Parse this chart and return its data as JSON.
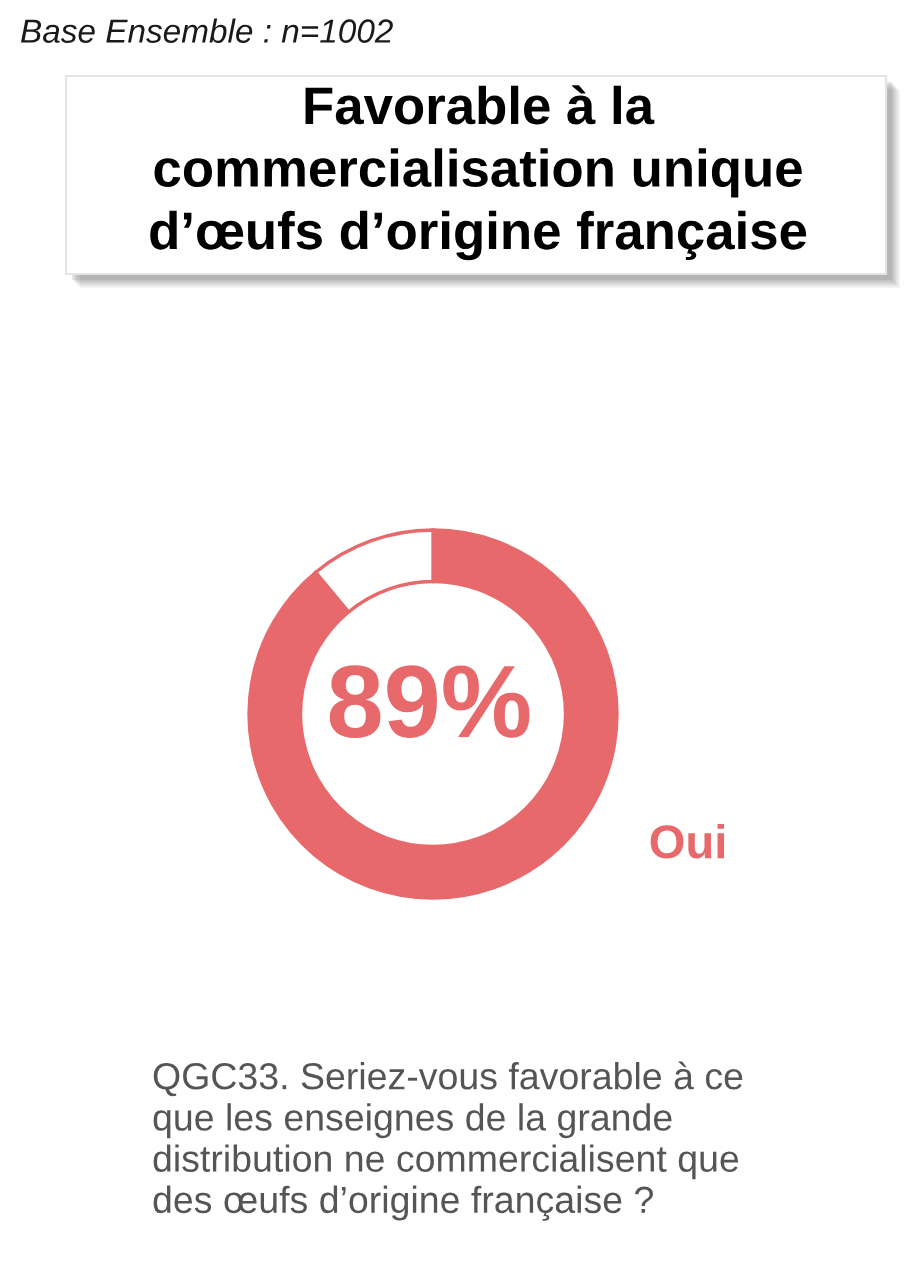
{
  "chart_data": {
    "type": "donut",
    "title": "Favorable à la commercialisation unique d’œufs d’origine française",
    "categories": [
      "Oui",
      null
    ],
    "values": [
      89,
      11
    ],
    "colors": [
      "#e8696b",
      "#ffffff"
    ],
    "value_labels": [
      "89%",
      null
    ],
    "annotations": [
      "Base Ensemble : n=1002",
      "QGC33. Seriez-vous favorable à ce que les enseignes de la grande distribution ne commercialisent que des œufs d’origine française ?"
    ]
  }
}
